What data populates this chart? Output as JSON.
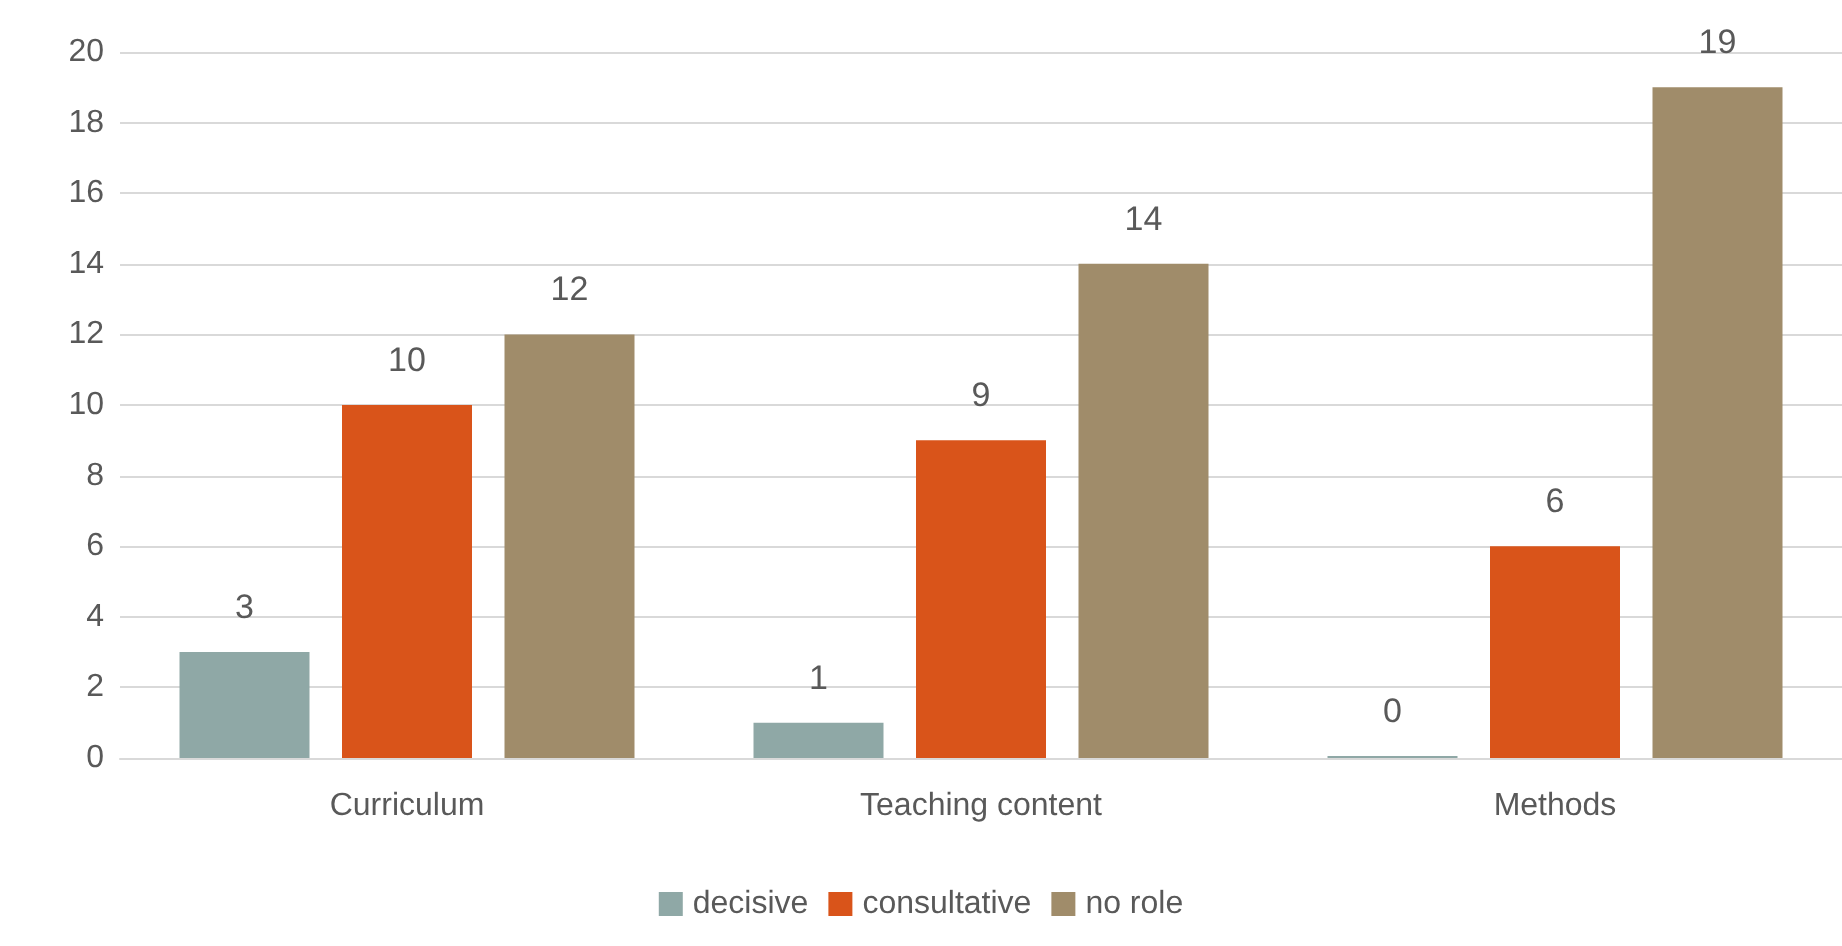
{
  "chart_data": {
    "type": "bar",
    "categories": [
      "Curriculum",
      "Teaching content",
      "Methods"
    ],
    "series": [
      {
        "name": "decisive",
        "color": "#8fa8a6",
        "values": [
          3,
          1,
          0
        ]
      },
      {
        "name": "consultative",
        "color": "#d9541a",
        "values": [
          10,
          9,
          6
        ]
      },
      {
        "name": "no role",
        "color": "#a08c6a",
        "values": [
          12,
          14,
          19
        ]
      }
    ],
    "ylim": [
      0,
      20
    ],
    "yticks": [
      0,
      2,
      4,
      6,
      8,
      10,
      12,
      14,
      16,
      18,
      20
    ],
    "grid": "y",
    "legend": "bottom",
    "data_labels": true
  }
}
